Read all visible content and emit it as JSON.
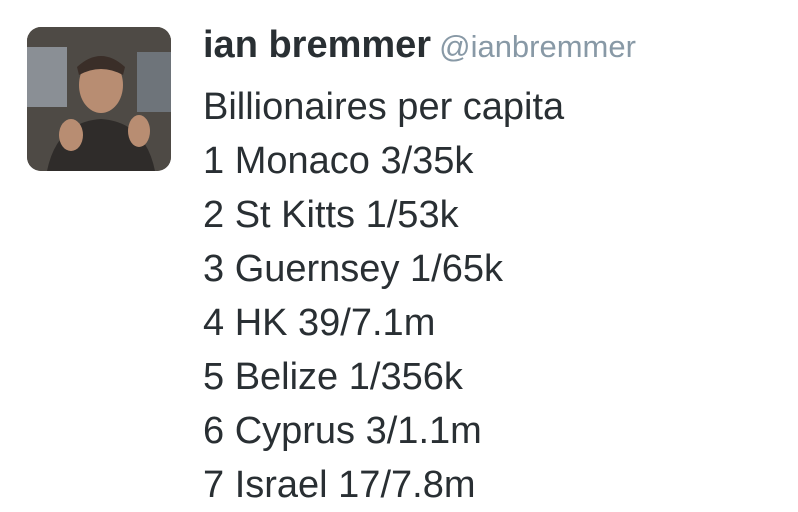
{
  "author": {
    "name": "ian bremmer",
    "handle": "@ianbremmer"
  },
  "tweet": {
    "lines": [
      "Billionaires per capita",
      "1 Monaco 3/35k",
      "2 St Kitts 1/53k",
      "3 Guernsey 1/65k",
      "4 HK 39/7.1m",
      "5 Belize 1/356k",
      "6 Cyprus 3/1.1m",
      "7 Israel 17/7.8m"
    ]
  }
}
